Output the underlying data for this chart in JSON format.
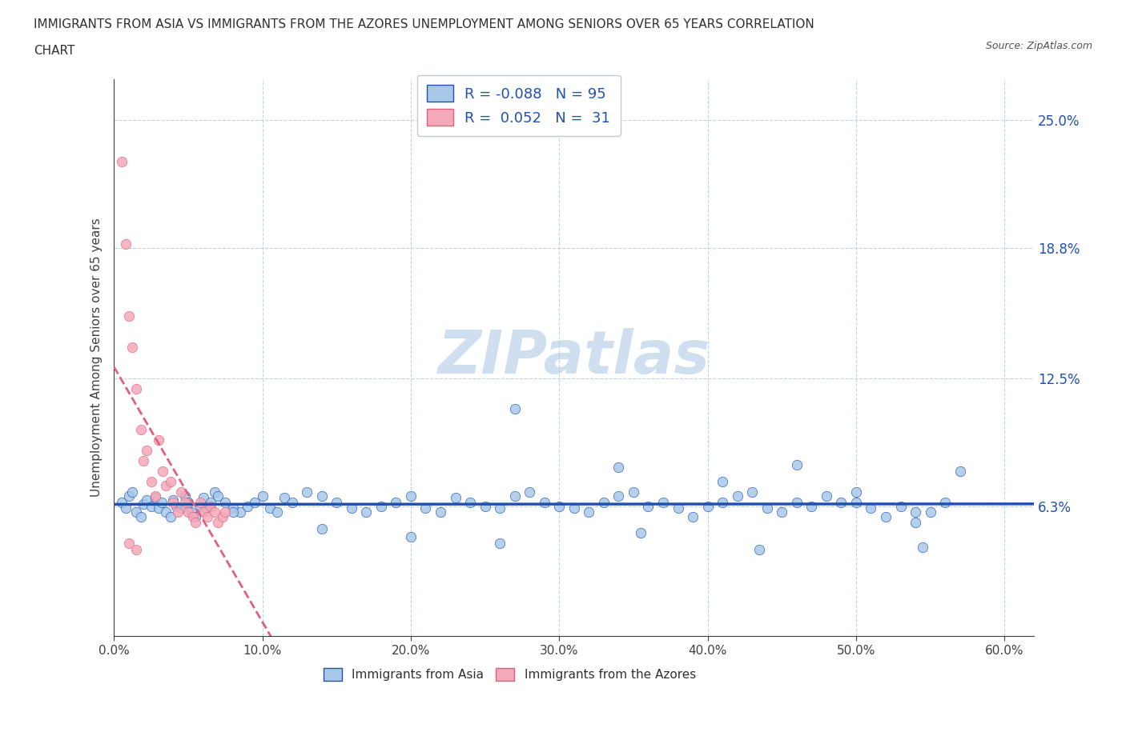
{
  "title_line1": "IMMIGRANTS FROM ASIA VS IMMIGRANTS FROM THE AZORES UNEMPLOYMENT AMONG SENIORS OVER 65 YEARS CORRELATION",
  "title_line2": "CHART",
  "source_text": "Source: ZipAtlas.com",
  "ylabel": "Unemployment Among Seniors over 65 years",
  "xlim": [
    0.0,
    0.62
  ],
  "ylim": [
    0.0,
    0.27
  ],
  "yticks": [
    0.0,
    0.063,
    0.125,
    0.188,
    0.25
  ],
  "ytick_labels": [
    "",
    "6.3%",
    "12.5%",
    "18.8%",
    "25.0%"
  ],
  "xticks": [
    0.0,
    0.1,
    0.2,
    0.3,
    0.4,
    0.5,
    0.6
  ],
  "xtick_labels": [
    "0.0%",
    "10.0%",
    "20.0%",
    "30.0%",
    "40.0%",
    "50.0%",
    "60.0%"
  ],
  "blue_color": "#a8c8e8",
  "pink_color": "#f4a8b8",
  "blue_line_color": "#2050b0",
  "pink_line_color": "#e06080",
  "watermark_color": "#d0dff0",
  "legend_R_color": "#2050b0",
  "R_blue": -0.088,
  "N_blue": 95,
  "R_pink": 0.052,
  "N_pink": 31,
  "blue_scatter_x": [
    0.005,
    0.008,
    0.01,
    0.012,
    0.015,
    0.018,
    0.02,
    0.022,
    0.025,
    0.028,
    0.03,
    0.032,
    0.035,
    0.038,
    0.04,
    0.042,
    0.045,
    0.048,
    0.05,
    0.052,
    0.055,
    0.058,
    0.06,
    0.062,
    0.065,
    0.068,
    0.07,
    0.075,
    0.08,
    0.085,
    0.09,
    0.095,
    0.1,
    0.105,
    0.11,
    0.115,
    0.12,
    0.13,
    0.14,
    0.15,
    0.16,
    0.17,
    0.18,
    0.19,
    0.2,
    0.21,
    0.22,
    0.23,
    0.24,
    0.25,
    0.26,
    0.27,
    0.28,
    0.29,
    0.3,
    0.31,
    0.32,
    0.33,
    0.34,
    0.35,
    0.36,
    0.37,
    0.38,
    0.39,
    0.4,
    0.41,
    0.42,
    0.43,
    0.44,
    0.45,
    0.46,
    0.47,
    0.48,
    0.49,
    0.5,
    0.51,
    0.52,
    0.53,
    0.54,
    0.55,
    0.56,
    0.27,
    0.34,
    0.41,
    0.46,
    0.5,
    0.54,
    0.57,
    0.545,
    0.435,
    0.355,
    0.26,
    0.2,
    0.14,
    0.08
  ],
  "blue_scatter_y": [
    0.065,
    0.062,
    0.068,
    0.07,
    0.06,
    0.058,
    0.064,
    0.066,
    0.063,
    0.067,
    0.062,
    0.065,
    0.06,
    0.058,
    0.066,
    0.063,
    0.062,
    0.068,
    0.065,
    0.06,
    0.058,
    0.063,
    0.067,
    0.062,
    0.065,
    0.07,
    0.068,
    0.065,
    0.062,
    0.06,
    0.063,
    0.065,
    0.068,
    0.062,
    0.06,
    0.067,
    0.065,
    0.07,
    0.068,
    0.065,
    0.062,
    0.06,
    0.063,
    0.065,
    0.068,
    0.062,
    0.06,
    0.067,
    0.065,
    0.063,
    0.062,
    0.068,
    0.07,
    0.065,
    0.063,
    0.062,
    0.06,
    0.065,
    0.068,
    0.07,
    0.063,
    0.065,
    0.062,
    0.058,
    0.063,
    0.065,
    0.068,
    0.07,
    0.062,
    0.06,
    0.065,
    0.063,
    0.068,
    0.065,
    0.07,
    0.062,
    0.058,
    0.063,
    0.06,
    0.06,
    0.065,
    0.11,
    0.082,
    0.075,
    0.083,
    0.065,
    0.055,
    0.08,
    0.043,
    0.042,
    0.05,
    0.045,
    0.048,
    0.052,
    0.06
  ],
  "pink_scatter_x": [
    0.005,
    0.008,
    0.01,
    0.012,
    0.015,
    0.018,
    0.02,
    0.022,
    0.025,
    0.028,
    0.03,
    0.033,
    0.035,
    0.038,
    0.04,
    0.043,
    0.045,
    0.048,
    0.05,
    0.053,
    0.055,
    0.058,
    0.06,
    0.063,
    0.065,
    0.068,
    0.07,
    0.073,
    0.075,
    0.01,
    0.015
  ],
  "pink_scatter_y": [
    0.23,
    0.19,
    0.155,
    0.14,
    0.12,
    0.1,
    0.085,
    0.09,
    0.075,
    0.068,
    0.095,
    0.08,
    0.073,
    0.075,
    0.065,
    0.06,
    0.07,
    0.065,
    0.06,
    0.058,
    0.055,
    0.065,
    0.06,
    0.058,
    0.063,
    0.06,
    0.055,
    0.058,
    0.06,
    0.045,
    0.042
  ]
}
